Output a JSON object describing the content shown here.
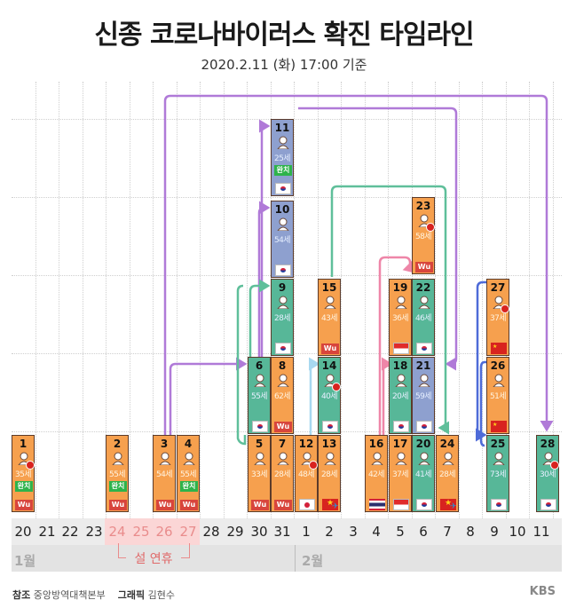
{
  "title": "신종 코로나바이러스 확진 타임라인",
  "subtitle": "2020.2.11 (화) 17:00 기준",
  "dates": [
    "20",
    "21",
    "22",
    "23",
    "24",
    "25",
    "26",
    "27",
    "28",
    "29",
    "30",
    "31",
    "1",
    "2",
    "3",
    "4",
    "5",
    "6",
    "7",
    "8",
    "9",
    "10",
    "11"
  ],
  "months": {
    "jan": "1월",
    "feb": "2월"
  },
  "holiday_label": "설 연휴",
  "cases": [
    {
      "n": "1",
      "age": "35세",
      "tag1": "완치",
      "tag2": "Wu"
    },
    {
      "n": "2",
      "age": "55세",
      "tag1": "완치",
      "tag2": "Wu"
    },
    {
      "n": "3",
      "age": "54세",
      "tag2": "Wu"
    },
    {
      "n": "4",
      "age": "55세",
      "tag1": "완치",
      "tag2": "Wu"
    },
    {
      "n": "5",
      "age": "33세",
      "tag2": "Wu"
    },
    {
      "n": "6",
      "age": "55세"
    },
    {
      "n": "7",
      "age": "28세",
      "tag2": "Wu"
    },
    {
      "n": "8",
      "age": "62세",
      "tag2": "Wu"
    },
    {
      "n": "9",
      "age": "28세"
    },
    {
      "n": "10",
      "age": "54세"
    },
    {
      "n": "11",
      "age": "25세",
      "tag1": "완치"
    },
    {
      "n": "12",
      "age": "48세"
    },
    {
      "n": "13",
      "age": "28세"
    },
    {
      "n": "14",
      "age": "40세"
    },
    {
      "n": "15",
      "age": "43세",
      "tag2": "Wu"
    },
    {
      "n": "16",
      "age": "42세"
    },
    {
      "n": "17",
      "age": "37세"
    },
    {
      "n": "18",
      "age": "20세"
    },
    {
      "n": "19",
      "age": "36세"
    },
    {
      "n": "20",
      "age": "41세"
    },
    {
      "n": "21",
      "age": "59세"
    },
    {
      "n": "22",
      "age": "46세"
    },
    {
      "n": "23",
      "age": "58세",
      "tag2": "Wu"
    },
    {
      "n": "24",
      "age": "28세"
    },
    {
      "n": "25",
      "age": "73세"
    },
    {
      "n": "26",
      "age": "51세"
    },
    {
      "n": "27",
      "age": "37세"
    },
    {
      "n": "28",
      "age": "30세"
    }
  ],
  "footer": {
    "ref_label": "참조",
    "ref": "중앙방역대책본부",
    "graphic_label": "그래픽",
    "graphic": "김현수"
  },
  "logo": "KBS"
}
